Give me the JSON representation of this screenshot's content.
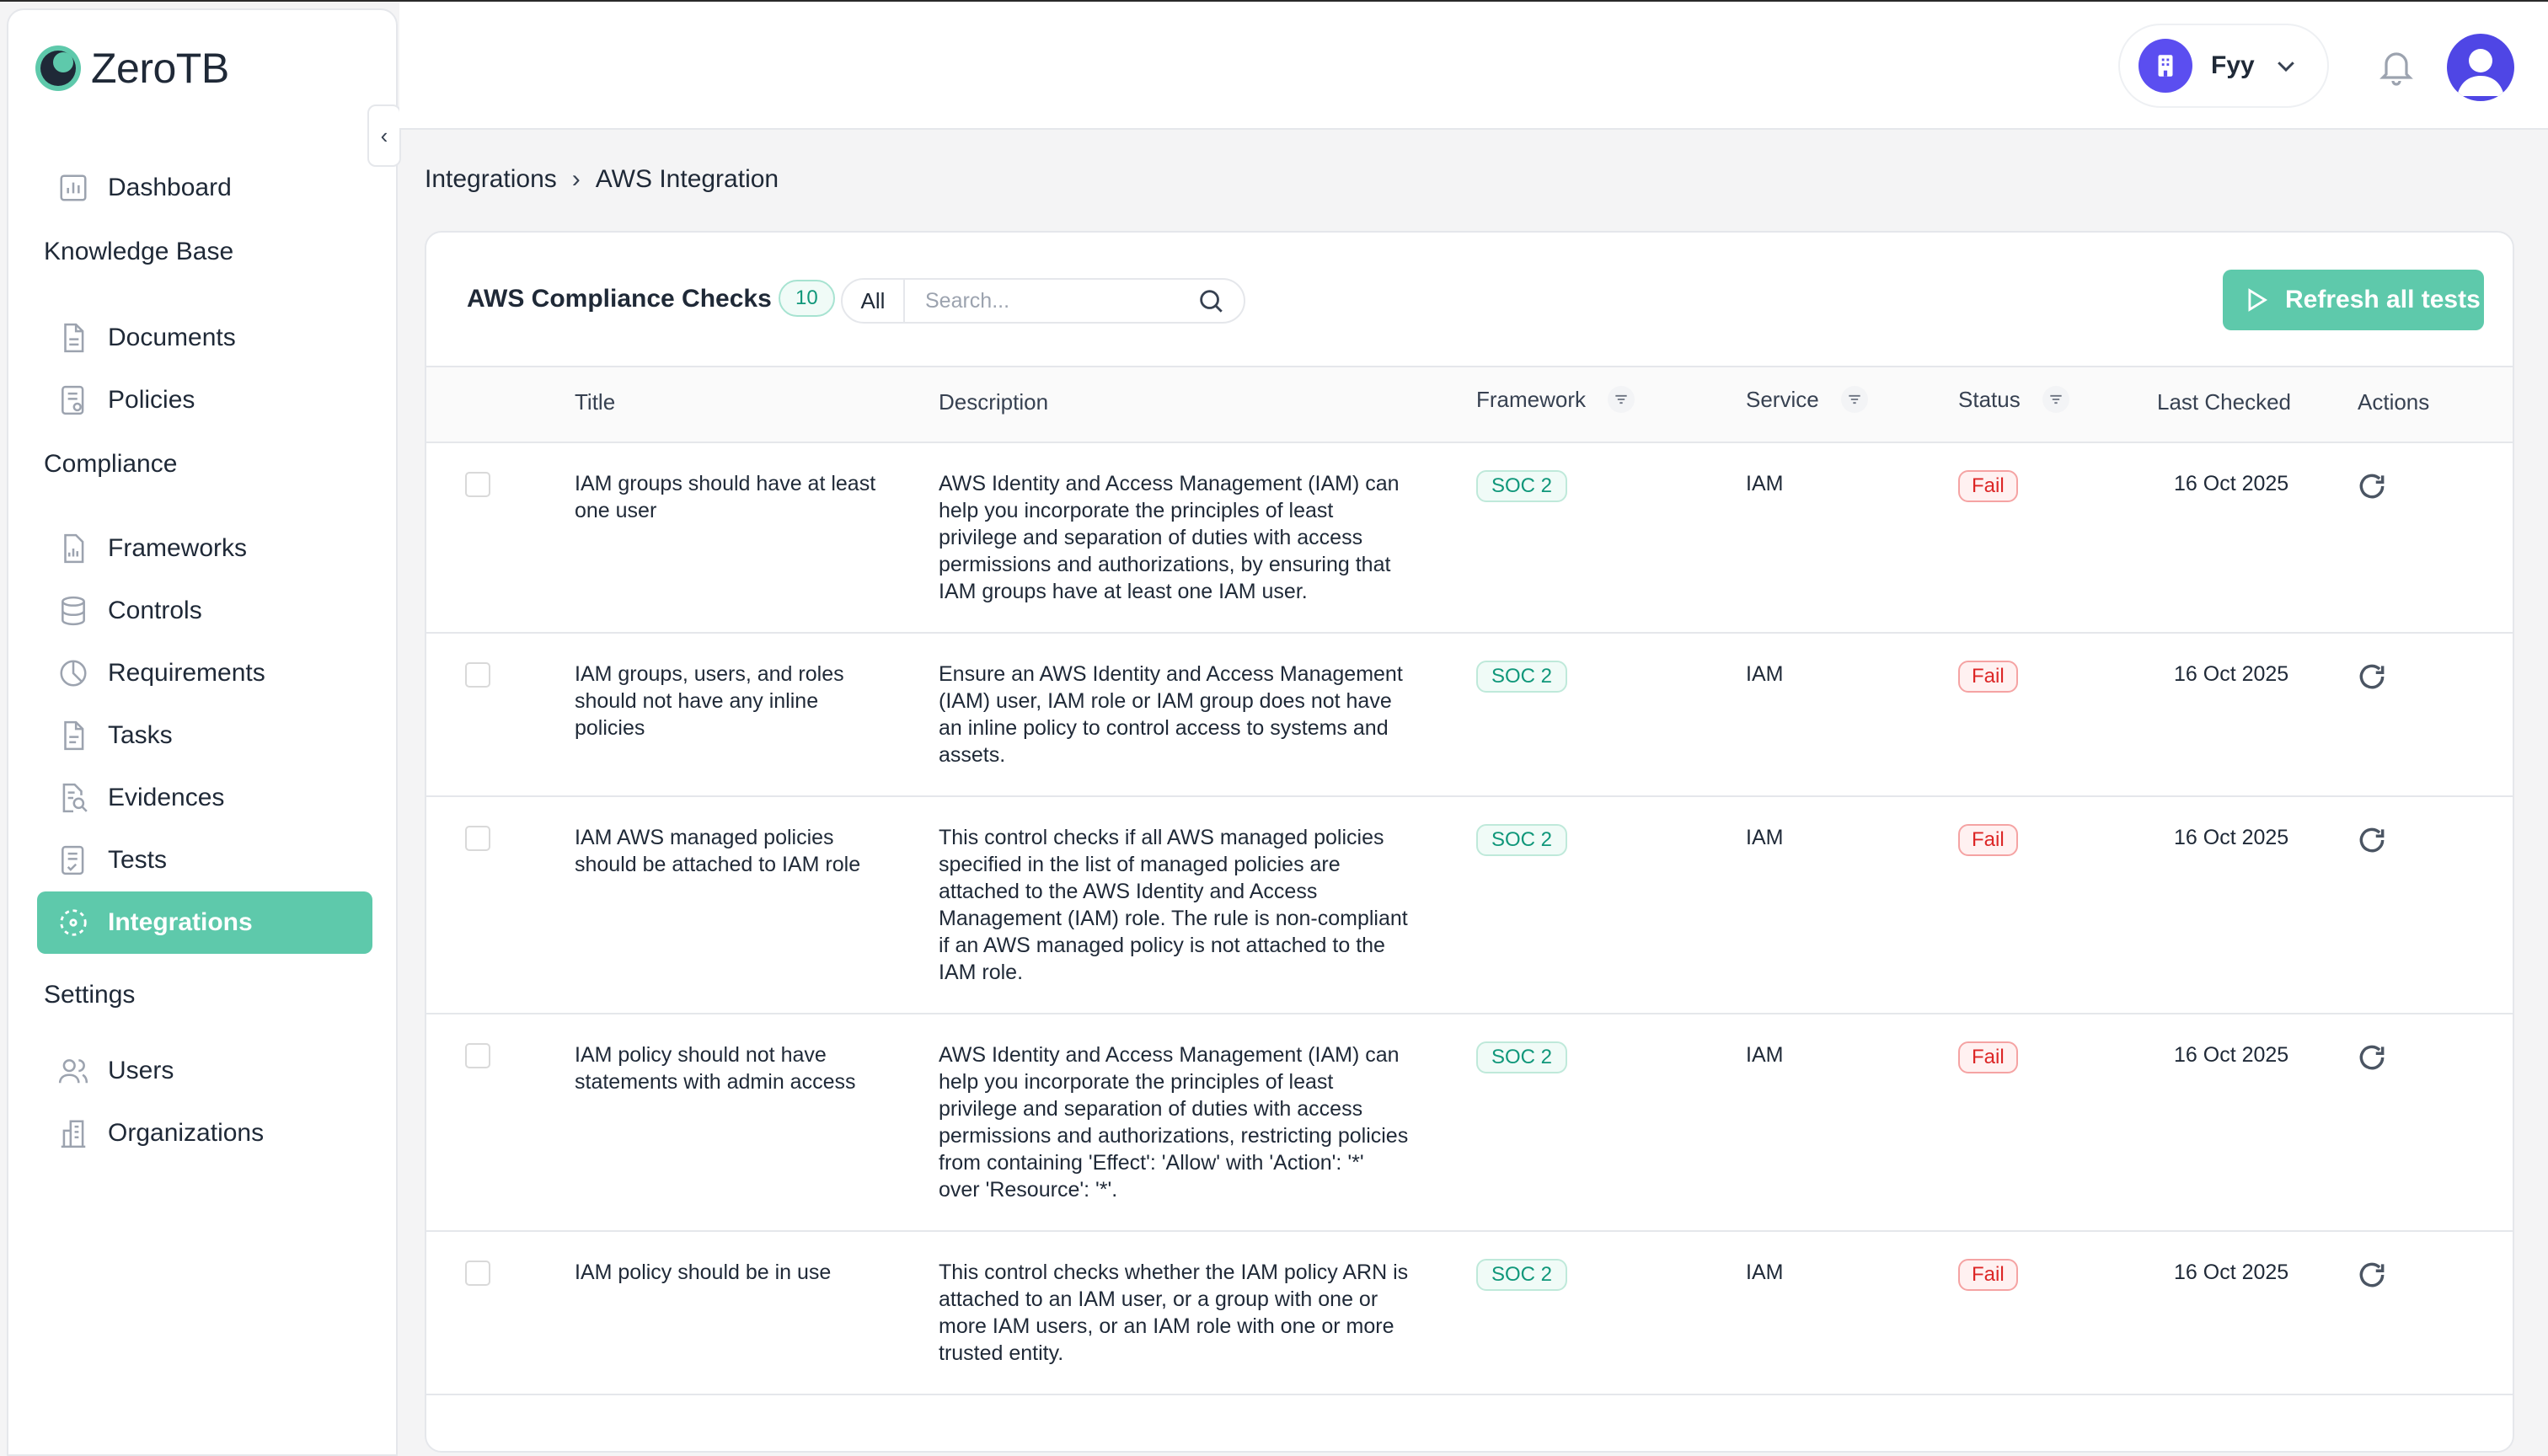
{
  "app": {
    "name": "ZeroTB"
  },
  "sidebar": {
    "top_items": [
      {
        "label": "Dashboard",
        "icon": "chart-icon"
      }
    ],
    "sections": [
      {
        "title": "Knowledge Base",
        "items": [
          {
            "label": "Documents",
            "icon": "document-icon"
          },
          {
            "label": "Policies",
            "icon": "policy-icon"
          }
        ]
      },
      {
        "title": "Compliance",
        "items": [
          {
            "label": "Frameworks",
            "icon": "framework-icon"
          },
          {
            "label": "Controls",
            "icon": "database-icon"
          },
          {
            "label": "Requirements",
            "icon": "pie-icon"
          },
          {
            "label": "Tasks",
            "icon": "task-icon"
          },
          {
            "label": "Evidences",
            "icon": "evidence-icon"
          },
          {
            "label": "Tests",
            "icon": "test-icon"
          },
          {
            "label": "Integrations",
            "icon": "integration-icon",
            "active": true
          }
        ]
      },
      {
        "title": "Settings",
        "items": [
          {
            "label": "Users",
            "icon": "users-icon"
          },
          {
            "label": "Organizations",
            "icon": "building-icon"
          }
        ]
      }
    ],
    "collapse_glyph": "‹"
  },
  "header": {
    "org_name": "Fyy"
  },
  "breadcrumb": {
    "parent": "Integrations",
    "current": "AWS Integration",
    "separator": "›"
  },
  "checks": {
    "title": "AWS Compliance Checks",
    "count": "10",
    "filter_label": "All",
    "search_placeholder": "Search...",
    "refresh_all_label": "Refresh all tests",
    "columns": {
      "title": "Title",
      "description": "Description",
      "framework": "Framework",
      "service": "Service",
      "status": "Status",
      "last_checked": "Last Checked",
      "actions": "Actions"
    },
    "rows": [
      {
        "title": "IAM groups should have at least one user",
        "description": "AWS Identity and Access Management (IAM) can help you incorporate the principles of least privilege and separation of duties with access permissions and authorizations, by ensuring that IAM groups have at least one IAM user.",
        "framework": "SOC 2",
        "service": "IAM",
        "status": "Fail",
        "last_checked": "16 Oct 2025"
      },
      {
        "title": "IAM groups, users, and roles should not have any inline policies",
        "description": "Ensure an AWS Identity and Access Management (IAM) user, IAM role or IAM group does not have an inline policy to control access to systems and assets.",
        "framework": "SOC 2",
        "service": "IAM",
        "status": "Fail",
        "last_checked": "16 Oct 2025"
      },
      {
        "title": "IAM AWS managed policies should be attached to IAM role",
        "description": "This control checks if all AWS managed policies specified in the list of managed policies are attached to the AWS Identity and Access Management (IAM) role. The rule is non-compliant if an AWS managed policy is not attached to the IAM role.",
        "framework": "SOC 2",
        "service": "IAM",
        "status": "Fail",
        "last_checked": "16 Oct 2025"
      },
      {
        "title": "IAM policy should not have statements with admin access",
        "description": "AWS Identity and Access Management (IAM) can help you incorporate the principles of least privilege and separation of duties with access permissions and authorizations, restricting policies from containing 'Effect': 'Allow' with 'Action': '*' over 'Resource': '*'.",
        "framework": "SOC 2",
        "service": "IAM",
        "status": "Fail",
        "last_checked": "16 Oct 2025"
      },
      {
        "title": "IAM policy should be in use",
        "description": "This control checks whether the IAM policy ARN is attached to an IAM user, or a group with one or more IAM users, or an IAM role with one or more trusted entity.",
        "framework": "SOC 2",
        "service": "IAM",
        "status": "Fail",
        "last_checked": "16 Oct 2025"
      }
    ]
  },
  "colors": {
    "accent": "#5ec9ab",
    "fail": "#dc2626",
    "org_avatar": "#5b4ef0",
    "user_avatar": "#4f46e5"
  }
}
